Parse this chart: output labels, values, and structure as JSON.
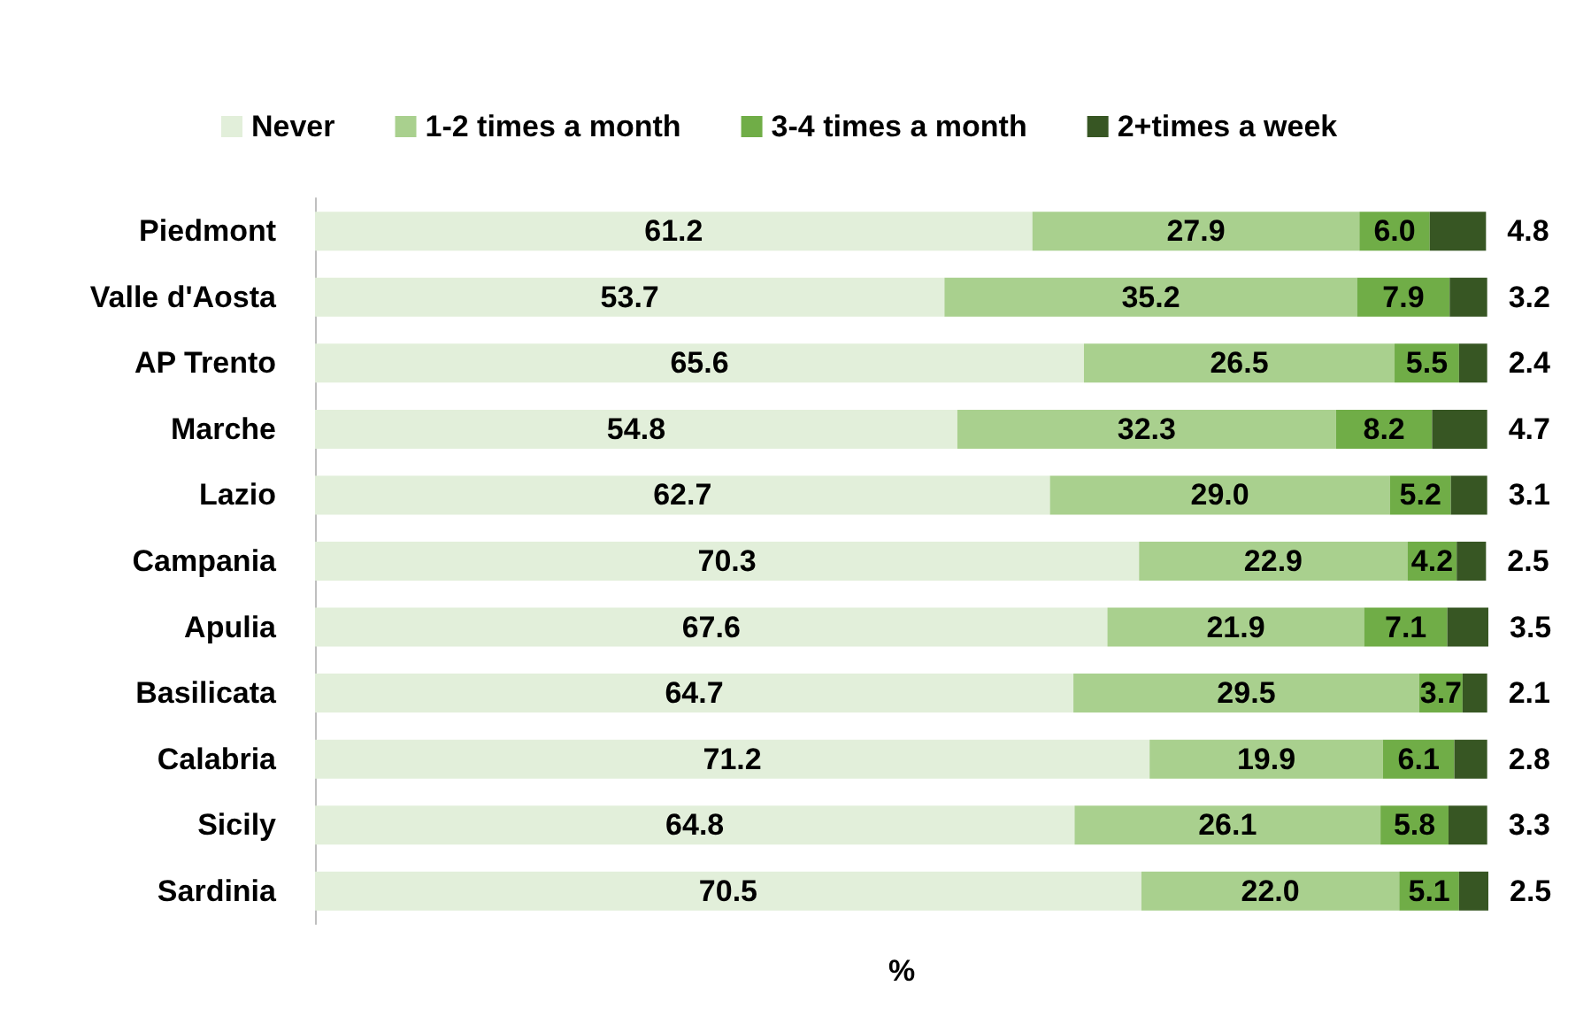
{
  "chart_data": {
    "type": "bar",
    "orientation": "horizontal",
    "stacked": true,
    "xlabel": "%",
    "legend": "top",
    "grid": false,
    "tick_labels": "y",
    "data_labels": true,
    "categories": [
      "Piedmont",
      "Valle d'Aosta",
      "AP Trento",
      "Marche",
      "Lazio",
      "Campania",
      "Apulia",
      "Basilicata",
      "Calabria",
      "Sicily",
      "Sardinia"
    ],
    "series": [
      {
        "name": "Never",
        "color": "#e2efda",
        "values": [
          61.2,
          53.7,
          65.6,
          54.8,
          62.7,
          70.3,
          67.6,
          64.7,
          71.2,
          64.8,
          70.5
        ],
        "value_labels": [
          "61.2",
          "53.7",
          "65.6",
          "54.8",
          "62.7",
          "70.3",
          "67.6",
          "64.7",
          "71.2",
          "64.8",
          "70.5"
        ]
      },
      {
        "name": "1-2 times a month",
        "color": "#a9d08e",
        "values": [
          27.9,
          35.2,
          26.5,
          32.3,
          29.0,
          22.9,
          21.9,
          29.5,
          19.9,
          26.1,
          22.0
        ],
        "value_labels": [
          "27.9",
          "35.2",
          "26.5",
          "32.3",
          "29.0",
          "22.9",
          "21.9",
          "29.5",
          "19.9",
          "26.1",
          "22.0"
        ]
      },
      {
        "name": "3-4 times a month",
        "color": "#70ad47",
        "values": [
          6.0,
          7.9,
          5.5,
          8.2,
          5.2,
          4.2,
          7.1,
          3.7,
          6.1,
          5.8,
          5.1
        ],
        "value_labels": [
          "6.0",
          "7.9",
          "5.5",
          "8.2",
          "5.2",
          "4.2",
          "7.1",
          "3.7",
          "6.1",
          "5.8",
          "5.1"
        ]
      },
      {
        "name": "2+times a week",
        "color": "#375623",
        "values": [
          4.8,
          3.2,
          2.4,
          4.7,
          3.1,
          2.5,
          3.5,
          2.1,
          2.8,
          3.3,
          2.5
        ],
        "value_labels": [
          "4.8",
          "3.2",
          "2.4",
          "4.7",
          "3.1",
          "2.5",
          "3.5",
          "2.1",
          "2.8",
          "3.3",
          "2.5"
        ]
      }
    ]
  }
}
